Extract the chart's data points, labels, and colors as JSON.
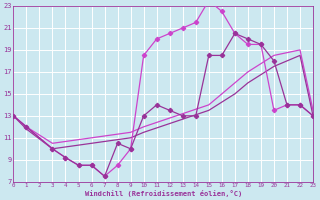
{
  "bg_color": "#cce8f0",
  "grid_color": "#ffffff",
  "lc1": "#993399",
  "lc2": "#cc44cc",
  "xlabel": "Windchill (Refroidissement éolien,°C)",
  "xlim": [
    0,
    23
  ],
  "ylim": [
    7,
    23
  ],
  "yticks": [
    7,
    9,
    11,
    13,
    15,
    17,
    19,
    21,
    23
  ],
  "xticks": [
    0,
    1,
    2,
    3,
    4,
    5,
    6,
    7,
    8,
    9,
    10,
    11,
    12,
    13,
    14,
    15,
    16,
    17,
    18,
    19,
    20,
    21,
    22,
    23
  ],
  "curve_peak_x": [
    0,
    1,
    3,
    4,
    5,
    6,
    7,
    8,
    9,
    10,
    11,
    12,
    13,
    14,
    15,
    16,
    17,
    18,
    19,
    20,
    21,
    22,
    23
  ],
  "curve_peak_y": [
    13,
    12,
    10,
    9.2,
    8.5,
    8.5,
    7.5,
    8.5,
    10,
    18.5,
    20,
    20.5,
    21,
    21.5,
    23.5,
    22.5,
    20.5,
    19.5,
    19.5,
    13.5,
    14,
    14,
    13
  ],
  "curve_low_x": [
    0,
    1,
    3,
    4,
    5,
    6,
    7,
    8,
    9,
    10,
    11,
    12,
    13,
    14,
    15,
    16,
    17,
    18,
    19,
    20,
    21,
    22,
    23
  ],
  "curve_low_y": [
    13,
    12,
    10,
    9.2,
    8.5,
    8.5,
    7.5,
    10.5,
    10,
    13,
    14,
    13.5,
    13,
    13,
    18.5,
    18.5,
    20.5,
    20,
    19.5,
    18,
    14,
    14,
    13
  ],
  "curve_line1_x": [
    0,
    1,
    3,
    9,
    10,
    15,
    17,
    18,
    20,
    22,
    23
  ],
  "curve_line1_y": [
    13,
    12,
    10.5,
    11.5,
    12,
    14,
    16,
    17,
    18.5,
    19,
    13.5
  ],
  "curve_line2_x": [
    0,
    1,
    3,
    9,
    10,
    15,
    17,
    18,
    20,
    22,
    23
  ],
  "curve_line2_y": [
    13,
    11.8,
    10,
    11,
    11.5,
    13.5,
    15,
    16,
    17.5,
    18.5,
    13
  ]
}
